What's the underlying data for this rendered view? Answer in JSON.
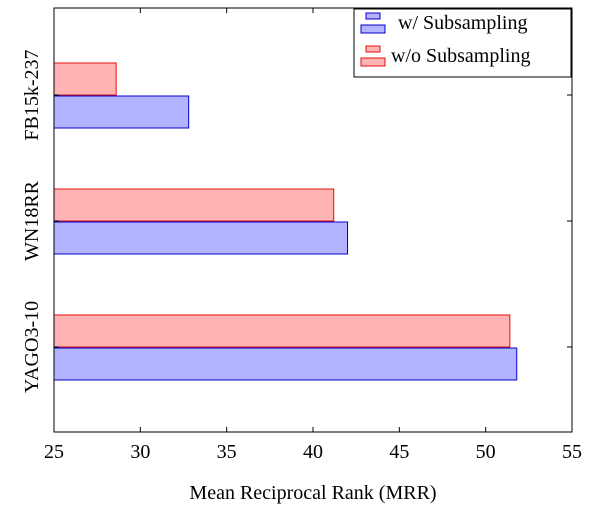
{
  "chart_data": {
    "type": "bar",
    "orientation": "horizontal",
    "categories": [
      "FB15k-237",
      "WN18RR",
      "YAGO3-10"
    ],
    "series": [
      {
        "name": "w/ Subsampling",
        "values": [
          32.8,
          42.0,
          51.8
        ],
        "fill": "#b3b3ff",
        "stroke": "#0000cc"
      },
      {
        "name": "w/o Subsampling",
        "values": [
          28.6,
          41.2,
          51.4
        ],
        "fill": "#ffb3b3",
        "stroke": "#e01010"
      }
    ],
    "title": "",
    "xlabel": "Mean Reciprocal Rank (MRR)",
    "ylabel": "",
    "xlim": [
      25,
      55
    ],
    "xticks": [
      25,
      30,
      35,
      40,
      45,
      50,
      55
    ],
    "grid": false,
    "legend_position": "top-right"
  }
}
